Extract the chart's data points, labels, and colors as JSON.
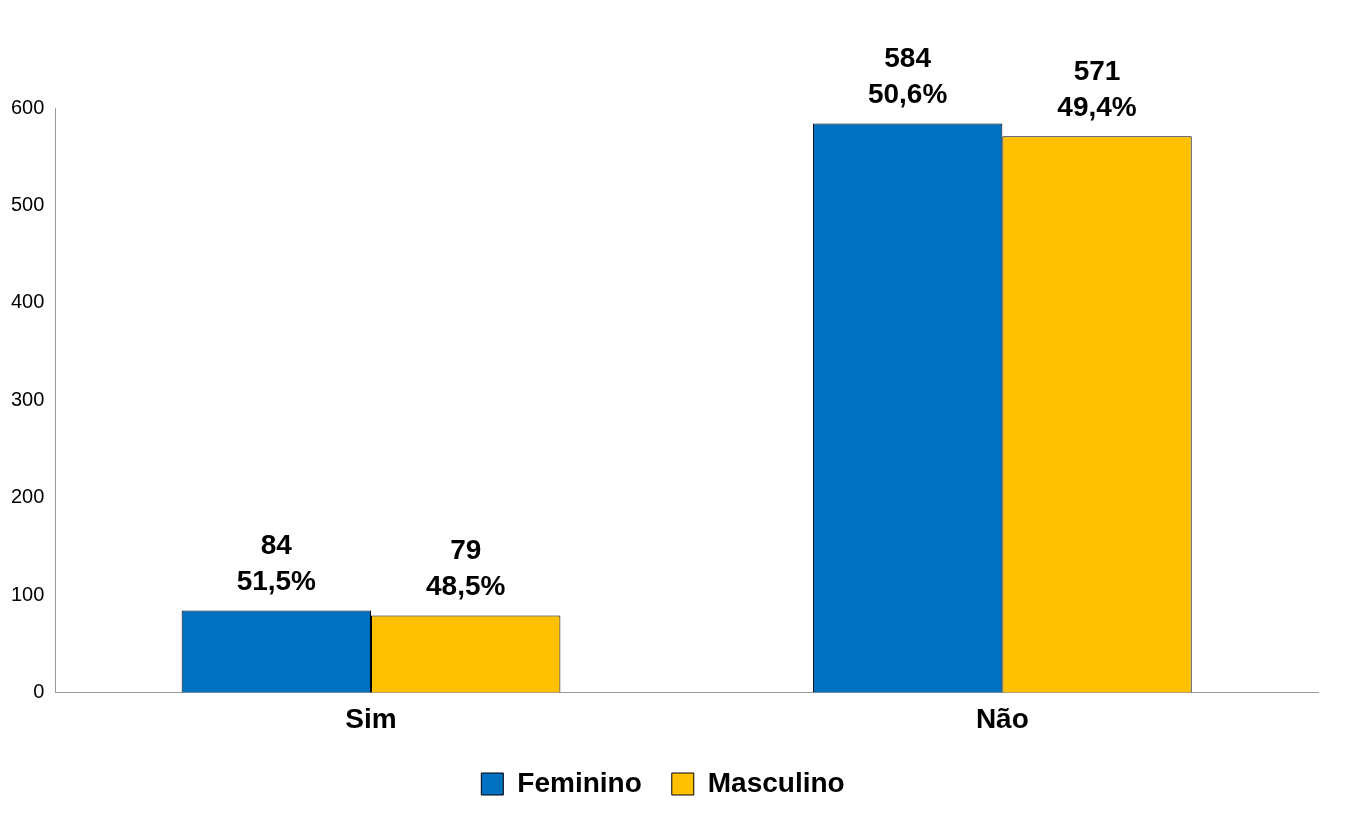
{
  "chart_data": {
    "type": "bar",
    "categories": [
      "Sim",
      "Não"
    ],
    "series": [
      {
        "name": "Feminino",
        "color": "#0070c0",
        "values": [
          84,
          584
        ],
        "value_labels": [
          "84\n51,5%",
          "584\n50,6%"
        ]
      },
      {
        "name": "Masculino",
        "color": "#ffc000",
        "values": [
          79,
          571
        ],
        "value_labels": [
          "79\n48,5%",
          "571\n49,4%"
        ]
      }
    ],
    "ylim": [
      0,
      600
    ],
    "yticks": [
      0,
      100,
      200,
      300,
      400,
      500,
      600
    ],
    "grid": false,
    "legend": "bottom"
  }
}
